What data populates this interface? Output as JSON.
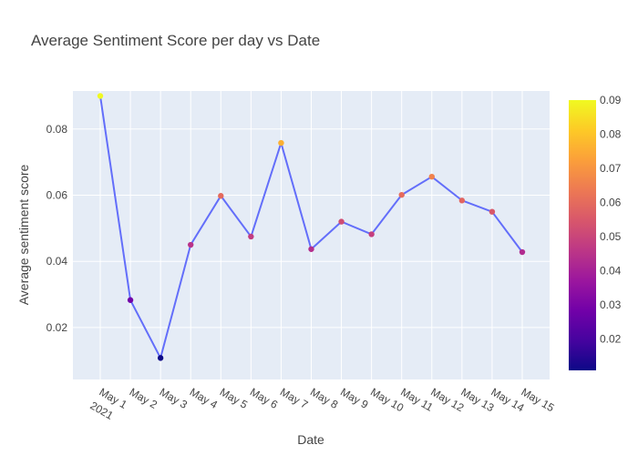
{
  "chart_data": {
    "type": "line",
    "title": "Average Sentiment Score per day vs Date",
    "xlabel": "Date",
    "ylabel": "Average sentiment score",
    "x": [
      "May 1",
      "May 2",
      "May 3",
      "May 4",
      "May 5",
      "May 6",
      "May 7",
      "May 8",
      "May 9",
      "May 10",
      "May 11",
      "May 12",
      "May 13",
      "May 14",
      "May 15"
    ],
    "x_year_label": "2021",
    "series": [
      {
        "values": [
          0.09,
          0.0283,
          0.0108,
          0.045,
          0.0598,
          0.0475,
          0.0758,
          0.0437,
          0.052,
          0.0482,
          0.0601,
          0.0656,
          0.0584,
          0.055,
          0.0428
        ],
        "line_color": "#636efa"
      }
    ],
    "ylim": [
      0.0043,
      0.0915
    ],
    "y_ticks": [
      0.02,
      0.04,
      0.06,
      0.08
    ],
    "y_tick_labels": [
      "0.02",
      "0.04",
      "0.06",
      "0.08"
    ],
    "grid": true,
    "plot_background": "#e5ecf6",
    "colorbar": {
      "range": [
        0.0108,
        0.09
      ],
      "ticks": [
        0.02,
        0.03,
        0.04,
        0.05,
        0.06,
        0.07,
        0.08,
        0.09
      ],
      "tick_labels": [
        "0.02",
        "0.03",
        "0.04",
        "0.05",
        "0.06",
        "0.07",
        "0.08",
        "0.09"
      ],
      "colorscale": [
        "#0d0887",
        "#46039f",
        "#7201a8",
        "#9c179e",
        "#bd3786",
        "#d8576b",
        "#ed7953",
        "#fb9f3a",
        "#fdca26",
        "#f0f921"
      ]
    }
  }
}
